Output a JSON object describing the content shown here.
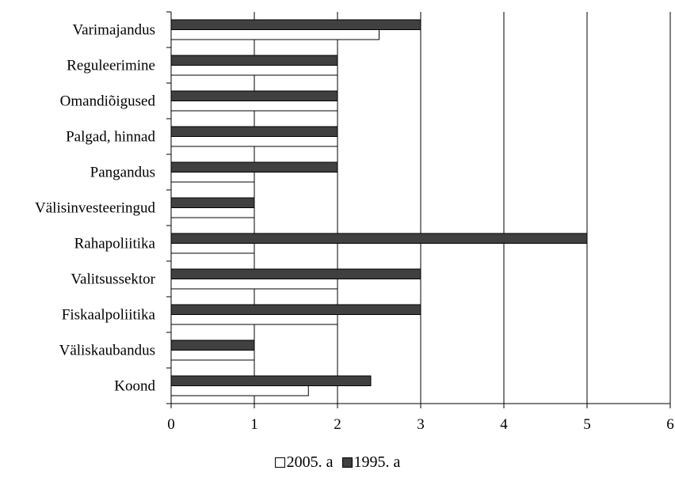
{
  "chart_data": {
    "type": "bar",
    "orientation": "horizontal",
    "categories": [
      "Varimajandus",
      "Reguleerimine",
      "Omandiõigused",
      "Palgad, hinnad",
      "Pangandus",
      "Välisinvesteeringud",
      "Rahapoliitika",
      "Valitsussektor",
      "Fiskaalpoliitika",
      "Väliskaubandus",
      "Koond"
    ],
    "series": [
      {
        "name": "2005. a",
        "color": "#ffffff",
        "values": [
          2.5,
          2,
          2,
          2,
          1,
          1,
          1,
          2,
          2,
          1,
          1.65
        ]
      },
      {
        "name": "1995. a",
        "color": "#404040",
        "values": [
          3,
          2,
          2,
          2,
          2,
          1,
          5,
          3,
          3,
          1,
          2.4
        ]
      }
    ],
    "xlim": [
      0,
      6
    ],
    "xticks": [
      "0",
      "1",
      "2",
      "3",
      "4",
      "5",
      "6"
    ],
    "grid": "vertical",
    "legend_position": "bottom-center",
    "title": "",
    "xlabel": "",
    "ylabel": ""
  }
}
